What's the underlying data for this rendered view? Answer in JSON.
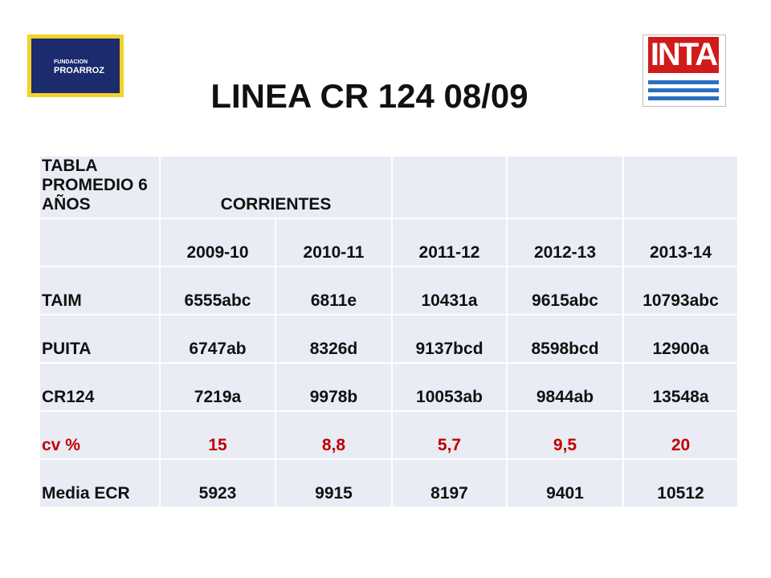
{
  "header": {
    "title": "LINEA CR 124 08/09"
  },
  "logos": {
    "left": {
      "line1": "FUNDACION",
      "line2": "PROARROZ"
    },
    "right": "INTA"
  },
  "table": {
    "title": "TABLA PROMEDIO 6 AÑOS",
    "group": "CORRIENTES",
    "columns": [
      "2009-10",
      "2010-11",
      "2011-12",
      "2012-13",
      "2013-14"
    ],
    "rows": [
      {
        "label": "TAIM",
        "cells": [
          "6555abc",
          "6811e",
          "10431a",
          "9615abc",
          "10793abc"
        ]
      },
      {
        "label": "PUITA",
        "cells": [
          "6747ab",
          "8326d",
          "9137bcd",
          "8598bcd",
          "12900a"
        ]
      },
      {
        "label": "CR124",
        "cells": [
          "7219a",
          "9978b",
          "10053ab",
          "9844ab",
          "13548a"
        ]
      },
      {
        "label": "cv %",
        "cells": [
          "15",
          "8,8",
          "5,7",
          "9,5",
          "20"
        ]
      },
      {
        "label": "Media ECR",
        "cells": [
          "5923",
          "9915",
          "8197",
          "9401",
          "10512"
        ]
      }
    ]
  }
}
